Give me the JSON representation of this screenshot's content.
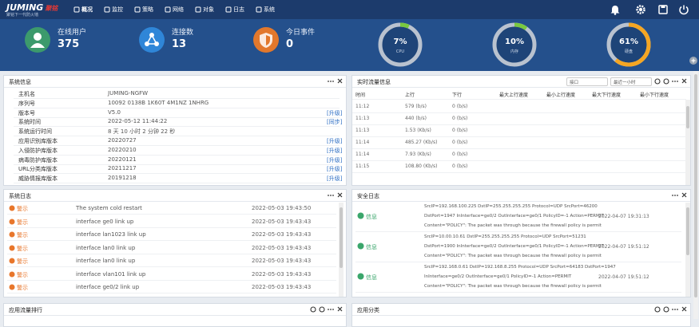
{
  "nav": {
    "logo": "JUMING",
    "logo_accent": "聚铭",
    "slogan": "聚铭下一代防火墙",
    "items": [
      "概况",
      "监控",
      "策略",
      "网络",
      "对象",
      "日志",
      "系统"
    ],
    "active": 0
  },
  "stats": [
    {
      "label": "在线用户",
      "value": 375,
      "icon": "user",
      "color": "#3c9a6c"
    },
    {
      "label": "连接数",
      "value": 13,
      "icon": "link",
      "color": "#2f86d8"
    },
    {
      "label": "今日事件",
      "value": 0,
      "icon": "shield",
      "color": "#e2782c"
    }
  ],
  "gauges": [
    {
      "label": "CPU",
      "value": 7,
      "value_label": "7%",
      "color": "#79c93f"
    },
    {
      "label": "内存",
      "value": 10,
      "value_label": "10%",
      "color": "#79c93f"
    },
    {
      "label": "硬盘",
      "value": 61,
      "value_label": "61%",
      "color": "#f5a623"
    }
  ],
  "system_info": {
    "title": "系统信息",
    "rows": [
      {
        "name": "主机名",
        "value": "JUMING-NGFW",
        "action": null
      },
      {
        "name": "序列号",
        "value": "10092 0138B 1K60T 4M1NZ 1NHRG",
        "action": null
      },
      {
        "name": "版本号",
        "value": "V5.0",
        "action": "[升级]"
      },
      {
        "name": "系统时间",
        "value": "2022-05-12 11:44:22",
        "action": "[同步]"
      },
      {
        "name": "系统运行时间",
        "value": "8 天 10 小时 2 分钟 22 秒",
        "action": null
      },
      {
        "name": "应用识别库版本",
        "value": "20220727",
        "action": "[升级]"
      },
      {
        "name": "入侵防护库版本",
        "value": "20220210",
        "action": "[升级]"
      },
      {
        "name": "病毒防护库版本",
        "value": "20220121",
        "action": "[升级]"
      },
      {
        "name": "URL分类库版本",
        "value": "20211217",
        "action": "[升级]"
      },
      {
        "name": "威胁情报库版本",
        "value": "20191218",
        "action": "[升级]"
      }
    ]
  },
  "traffic": {
    "title": "实时流量信息",
    "filters": [
      "接口",
      "最近一小时"
    ],
    "columns": [
      "时间",
      "上行",
      "下行",
      "最大上行速度",
      "最小上行速度",
      "最大下行速度",
      "最小下行速度"
    ],
    "rows": [
      [
        "11:12",
        "579 (b/s)",
        "0 (b/s)"
      ],
      [
        "11:13",
        "440 (b/s)",
        "0 (b/s)"
      ],
      [
        "11:13",
        "1.53 (Kb/s)",
        "0 (b/s)"
      ],
      [
        "11:14",
        "485.27 (Kb/s)",
        "0 (b/s)"
      ],
      [
        "11:14",
        "7.93 (Kb/s)",
        "0 (b/s)"
      ],
      [
        "11:15",
        "108.80 (Kb/s)",
        "0 (b/s)"
      ]
    ]
  },
  "system_log": {
    "title": "系统日志",
    "rows": [
      {
        "level": "警示",
        "message": "The system cold restart",
        "time": "2022-05-03 19:43:50"
      },
      {
        "level": "警示",
        "message": "interface ge0 link up",
        "time": "2022-05-03 19:43:43"
      },
      {
        "level": "警示",
        "message": "interface lan1023 link up",
        "time": "2022-05-03 19:43:43"
      },
      {
        "level": "警示",
        "message": "interface lan0 link up",
        "time": "2022-05-03 19:43:43"
      },
      {
        "level": "警示",
        "message": "interface lan0 link up",
        "time": "2022-05-03 19:43:43"
      },
      {
        "level": "警示",
        "message": "interface vlan101 link up",
        "time": "2022-05-03 19:43:43"
      },
      {
        "level": "警示",
        "message": "interface ge0/2 link up",
        "time": "2022-05-03 19:43:43"
      }
    ]
  },
  "security_log": {
    "title": "安全日志",
    "rows": [
      {
        "level": "信息",
        "lines": [
          "SrcIP=192.168.100.225 DstIP=255.255.255.255 Protocol=UDP SrcPort=46200",
          "DstPort=1947 InInterface=ge0/2 OutInterface=ge0/1 PolicyID=-1 Action=PERMIT",
          "Content=\"POLICY\": The packet was through because the firewall policy is permit"
        ],
        "time": "2022-04-07 19:31:13"
      },
      {
        "level": "信息",
        "lines": [
          "SrcIP=10.00.10.61 DstIP=255.255.255.255 Protocol=UDP SrcPort=51231",
          "DstPort=1900 InInterface=ge0/2 OutInterface=ge0/1 PolicyID=-1 Action=PERMIT",
          "Content=\"POLICY\": The packet was through because the firewall policy is permit"
        ],
        "time": "2022-04-07 19:51:12"
      },
      {
        "level": "信息",
        "lines": [
          "SrcIP=192.168.0.61 DstIP=192.168.8.255 Protocol=UDP SrcPort=64183 DstPort=1947",
          "InInterface=ge0/2 OutInterface=ge0/1 PolicyID=-1 Action=PERMIT",
          "Content=\"POLICY\": The packet was through because the firewall policy is permit"
        ],
        "time": "2022-04-07 19:51:12"
      }
    ]
  },
  "bottom_panels": [
    "应用流量排行",
    "应用分类"
  ]
}
